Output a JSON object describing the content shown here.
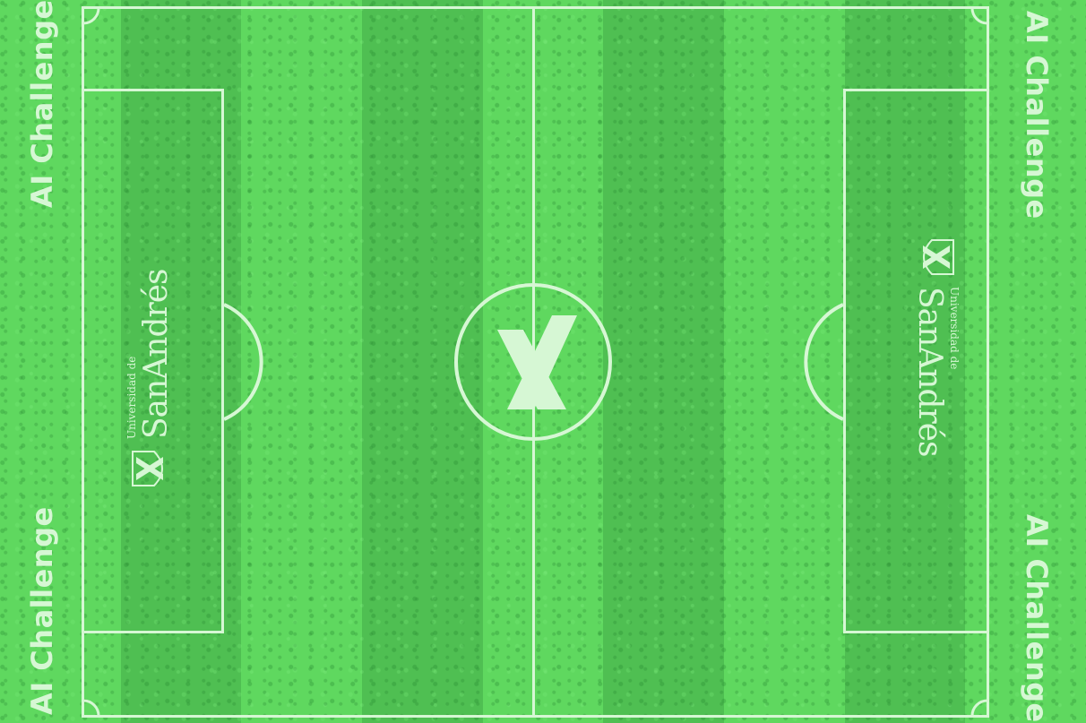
{
  "field": {
    "colors": {
      "grass_light": "#5fd85f",
      "grass_dark": "#4fbf52",
      "lines": "#d6f7d4"
    }
  },
  "side_labels": {
    "top_left": "AI Challenge",
    "bottom_left": "AI Challenge",
    "top_right": "AI Challenge",
    "bottom_right": "AI Challenge"
  },
  "logos": {
    "left": {
      "line1": "Universidad de",
      "line2": "SanAndrés"
    },
    "right": {
      "line1": "Universidad de",
      "line2": "SanAndrés"
    },
    "center": {
      "icon": "x-mark-icon"
    }
  }
}
